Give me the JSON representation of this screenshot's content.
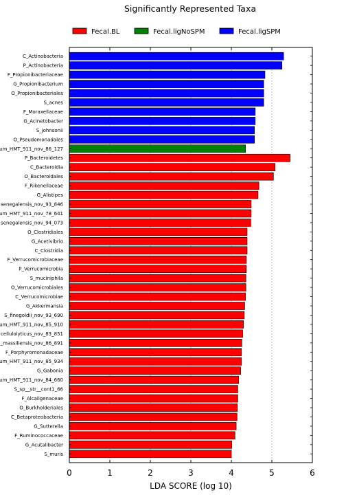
{
  "chart_data": {
    "type": "bar",
    "orientation": "horizontal",
    "title": "Significantly Represented Taxa",
    "xlabel": "LDA SCORE (log 10)",
    "ylabel": "",
    "xlim": [
      0,
      6
    ],
    "xticks": [
      0,
      1,
      2,
      3,
      4,
      5,
      6
    ],
    "grid": "vertical dashed",
    "legend_position": "top",
    "colors": {
      "Fecal.BL": "#ff0000",
      "Fecal.ligNoSPM": "#008000",
      "Fecal.ligSPM": "#0000ff"
    },
    "legend": [
      "Fecal.BL",
      "Fecal.ligNoSPM",
      "Fecal.ligSPM"
    ],
    "categories": [
      "C_Actinobacteria",
      "P_Actinobacteria",
      "F_Propionibacteriaceae",
      "G_Propionibacterium",
      "O_Propionibacteriales",
      "S_acnes",
      "F_Moraxellaceae",
      "G_Acinetobacter",
      "S_johnsonii",
      "O_Pseudomonadales",
      "um_HMT_911_nov_86_127",
      "P_Bacteroidetes",
      "C_Bacteroidia",
      "O_Bacteroidales",
      "F_Rikenellaceae",
      "G_Alistipes",
      "senegalensis_nov_93_846",
      "um_HMT_911_nov_78_641",
      "senegalensis_nov_94_073",
      "O_Clostridiales",
      "G_Acetivibrio",
      "C_Clostridia",
      "F_Verrucomicrobiaceae",
      "P_Verrucomicrobia",
      "S_muciniphila",
      "O_Verrucomicrobiales",
      "C_Verrucomicrobiae",
      "G_Akkermansia",
      "S_finegoldii_nov_93_690",
      "um_HMT_911_nov_85_910",
      "cellulolyticus_nov_83_851",
      "_massiliensis_nov_86_891",
      "F_Porphyromonadaceae",
      "um_HMT_911_nov_85_934",
      "G_Gabonia",
      "um_HMT_911_nov_84_660",
      "S_sp__str__cont1_66",
      "F_Alcaligenaceae",
      "O_Burkholderiales",
      "C_Betaproteobacteria",
      "G_Sutterella",
      "F_Ruminococcaceae",
      "G_Acutalibacter",
      "S_muris"
    ],
    "values": [
      5.29,
      5.25,
      4.83,
      4.8,
      4.8,
      4.8,
      4.59,
      4.59,
      4.57,
      4.57,
      4.35,
      5.45,
      5.08,
      5.04,
      4.68,
      4.66,
      4.49,
      4.49,
      4.48,
      4.39,
      4.39,
      4.39,
      4.37,
      4.37,
      4.36,
      4.36,
      4.35,
      4.33,
      4.32,
      4.3,
      4.28,
      4.26,
      4.25,
      4.25,
      4.23,
      4.18,
      4.16,
      4.16,
      4.15,
      4.14,
      4.12,
      4.09,
      4.01,
      4.0
    ],
    "groups": [
      "Fecal.ligSPM",
      "Fecal.ligSPM",
      "Fecal.ligSPM",
      "Fecal.ligSPM",
      "Fecal.ligSPM",
      "Fecal.ligSPM",
      "Fecal.ligSPM",
      "Fecal.ligSPM",
      "Fecal.ligSPM",
      "Fecal.ligSPM",
      "Fecal.ligNoSPM",
      "Fecal.BL",
      "Fecal.BL",
      "Fecal.BL",
      "Fecal.BL",
      "Fecal.BL",
      "Fecal.BL",
      "Fecal.BL",
      "Fecal.BL",
      "Fecal.BL",
      "Fecal.BL",
      "Fecal.BL",
      "Fecal.BL",
      "Fecal.BL",
      "Fecal.BL",
      "Fecal.BL",
      "Fecal.BL",
      "Fecal.BL",
      "Fecal.BL",
      "Fecal.BL",
      "Fecal.BL",
      "Fecal.BL",
      "Fecal.BL",
      "Fecal.BL",
      "Fecal.BL",
      "Fecal.BL",
      "Fecal.BL",
      "Fecal.BL",
      "Fecal.BL",
      "Fecal.BL",
      "Fecal.BL",
      "Fecal.BL",
      "Fecal.BL",
      "Fecal.BL"
    ]
  }
}
